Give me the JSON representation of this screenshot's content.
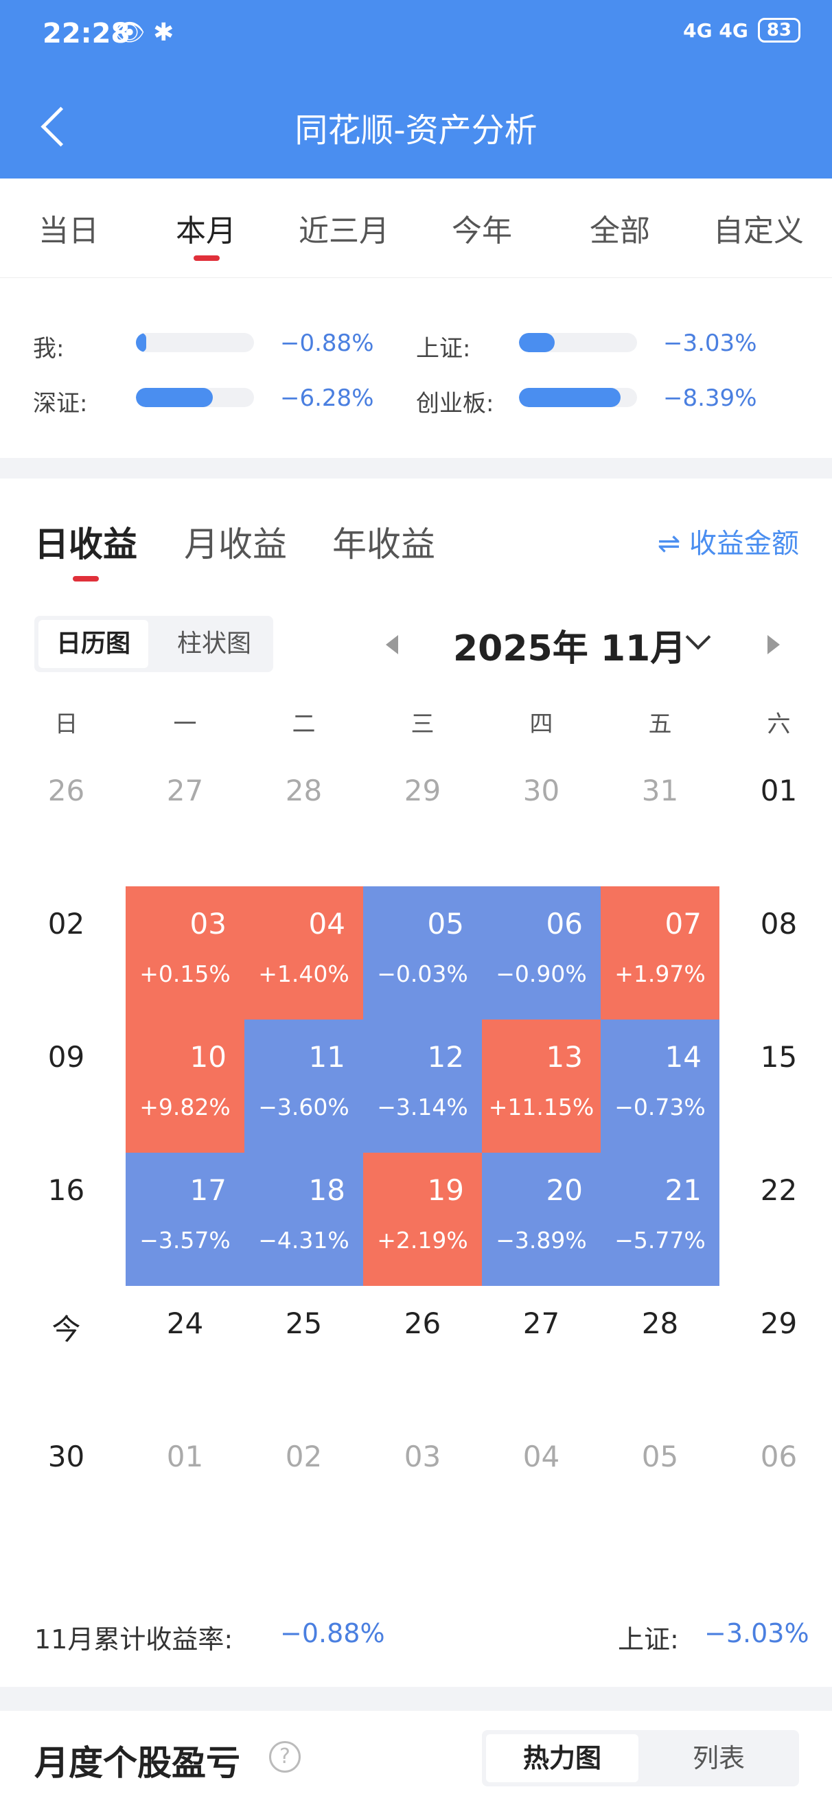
{
  "status_bar": {
    "time": "22:28",
    "left_icons": "👁 ✱",
    "network": "4G 4G",
    "battery": "83"
  },
  "header": {
    "title": "同花顺-资产分析"
  },
  "period_tabs": [
    "当日",
    "本月",
    "近三月",
    "今年",
    "全部",
    "自定义"
  ],
  "period_active": 1,
  "comparison": [
    {
      "label": "我:",
      "value": "−0.88%",
      "fill": 0.09
    },
    {
      "label": "上证:",
      "value": "−3.03%",
      "fill": 0.3
    },
    {
      "label": "深证:",
      "value": "−6.28%",
      "fill": 0.65
    },
    {
      "label": "创业板:",
      "value": "−8.39%",
      "fill": 0.86
    }
  ],
  "return_tabs": [
    "日收益",
    "月收益",
    "年收益"
  ],
  "amount_toggle": "⇌ 收益金额",
  "view_toggle": [
    "日历图",
    "柱状图"
  ],
  "month_label": "2025年 11月",
  "weekdays": [
    "日",
    "一",
    "二",
    "三",
    "四",
    "五",
    "六"
  ],
  "calendar": [
    [
      {
        "d": "26",
        "o": true
      },
      {
        "d": "27",
        "o": true
      },
      {
        "d": "28",
        "o": true
      },
      {
        "d": "29",
        "o": true
      },
      {
        "d": "30",
        "o": true
      },
      {
        "d": "31",
        "o": true
      },
      {
        "d": "01"
      }
    ],
    [
      {
        "d": "02"
      },
      {
        "d": "03",
        "p": "+0.15%"
      },
      {
        "d": "04",
        "p": "+1.40%"
      },
      {
        "d": "05",
        "p": "−0.03%"
      },
      {
        "d": "06",
        "p": "−0.90%"
      },
      {
        "d": "07",
        "p": "+1.97%"
      },
      {
        "d": "08"
      }
    ],
    [
      {
        "d": "09"
      },
      {
        "d": "10",
        "p": "+9.82%"
      },
      {
        "d": "11",
        "p": "−3.60%"
      },
      {
        "d": "12",
        "p": "−3.14%"
      },
      {
        "d": "13",
        "p": "+11.15%"
      },
      {
        "d": "14",
        "p": "−0.73%"
      },
      {
        "d": "15"
      }
    ],
    [
      {
        "d": "16"
      },
      {
        "d": "17",
        "p": "−3.57%"
      },
      {
        "d": "18",
        "p": "−4.31%"
      },
      {
        "d": "19",
        "p": "+2.19%"
      },
      {
        "d": "20",
        "p": "−3.89%"
      },
      {
        "d": "21",
        "p": "−5.77%"
      },
      {
        "d": "22"
      }
    ],
    [
      {
        "d": "今"
      },
      {
        "d": "24"
      },
      {
        "d": "25"
      },
      {
        "d": "26"
      },
      {
        "d": "27"
      },
      {
        "d": "28"
      },
      {
        "d": "29"
      }
    ],
    [
      {
        "d": "30"
      },
      {
        "d": "01",
        "o": true
      },
      {
        "d": "02",
        "o": true
      },
      {
        "d": "03",
        "o": true
      },
      {
        "d": "04",
        "o": true
      },
      {
        "d": "05",
        "o": true
      },
      {
        "d": "06",
        "o": true
      }
    ]
  ],
  "summary": {
    "label": "11月累计收益率:",
    "value": "−0.88%",
    "index_label": "上证:",
    "index_value": "−3.03%"
  },
  "stock_section": {
    "title": "月度个股盈亏",
    "help": "?",
    "toggle": [
      "热力图",
      "列表"
    ]
  },
  "colors": {
    "header": "#4a8ef0",
    "up": "#f5735d",
    "down": "#6f93e3",
    "accent_red": "#e0303a"
  }
}
